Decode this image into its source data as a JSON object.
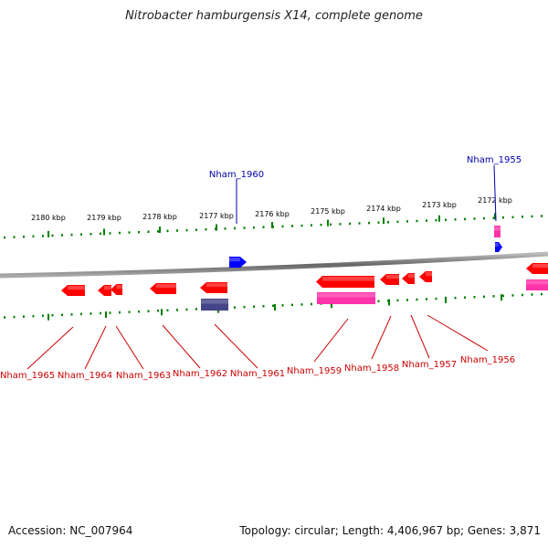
{
  "title": "Nitrobacter hamburgensis X14, complete genome",
  "footer": {
    "accession": "Accession: NC_007964",
    "stats": "Topology: circular; Length: 4,406,967 bp; Genes: 3,871"
  },
  "colors": {
    "forward_gene": "#0000ff",
    "reverse_gene": "#ff0000",
    "pink_feature": "#ff33aa",
    "purple_feature": "#444488",
    "axis_ticks": "#008000",
    "forward_label": "#0000aa",
    "reverse_label": "#cc0000",
    "backbone": "#888888"
  },
  "axis": {
    "ticks": [
      "2180 kbp",
      "2179 kbp",
      "2178 kbp",
      "2177 kbp",
      "2176 kbp",
      "2175 kbp",
      "2174 kbp",
      "2173 kbp",
      "2172 kbp"
    ]
  },
  "genes_forward": [
    "Nham_1960",
    "Nham_1955"
  ],
  "genes_reverse": [
    "Nham_1965",
    "Nham_1964",
    "Nham_1963",
    "Nham_1962",
    "Nham_1961",
    "Nham_1959",
    "Nham_1958",
    "Nham_1957",
    "Nham_1956"
  ]
}
